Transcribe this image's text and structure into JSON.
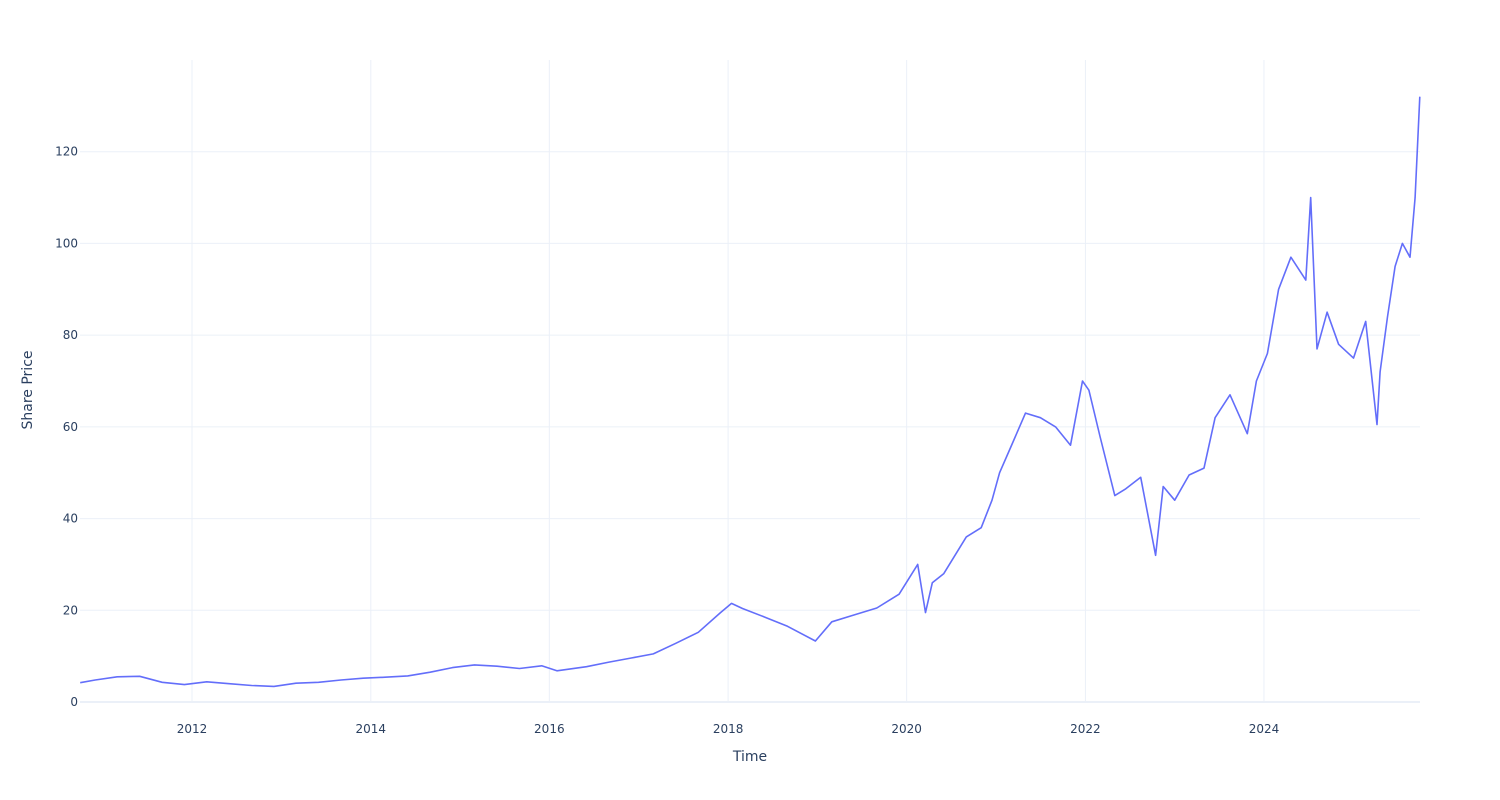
{
  "chart_data": {
    "type": "line",
    "title": "",
    "xlabel": "Time",
    "ylabel": "Share Price",
    "xlim": [
      "2010-09-30",
      "2025-09-30"
    ],
    "ylim": [
      0,
      140
    ],
    "x_ticks": [
      "2012",
      "2014",
      "2016",
      "2018",
      "2020",
      "2022",
      "2024"
    ],
    "y_ticks": [
      "0",
      "20",
      "40",
      "60",
      "80",
      "100",
      "120"
    ],
    "grid": true,
    "legend": "none",
    "series": [
      {
        "color": "#636efa",
        "x": [
          "2010-10-01",
          "2010-12-01",
          "2011-03-01",
          "2011-06-01",
          "2011-09-01",
          "2011-12-01",
          "2012-03-01",
          "2012-06-01",
          "2012-09-01",
          "2012-12-01",
          "2013-03-01",
          "2013-06-01",
          "2013-09-01",
          "2013-12-01",
          "2014-03-01",
          "2014-06-01",
          "2014-09-01",
          "2014-12-01",
          "2015-03-01",
          "2015-06-01",
          "2015-09-01",
          "2015-12-01",
          "2016-02-01",
          "2016-06-01",
          "2016-09-01",
          "2016-12-01",
          "2017-03-01",
          "2017-06-01",
          "2017-09-01",
          "2017-12-01",
          "2018-01-15",
          "2018-03-01",
          "2018-06-01",
          "2018-09-01",
          "2018-12-24",
          "2019-03-01",
          "2019-06-01",
          "2019-09-01",
          "2019-12-01",
          "2020-02-15",
          "2020-03-18",
          "2020-04-15",
          "2020-06-01",
          "2020-09-01",
          "2020-11-01",
          "2020-12-15",
          "2021-01-15",
          "2021-03-01",
          "2021-05-01",
          "2021-07-01",
          "2021-09-01",
          "2021-11-01",
          "2021-12-20",
          "2022-01-15",
          "2022-03-01",
          "2022-05-01",
          "2022-06-15",
          "2022-08-15",
          "2022-10-15",
          "2022-11-15",
          "2023-01-01",
          "2023-03-01",
          "2023-05-01",
          "2023-06-15",
          "2023-08-15",
          "2023-10-25",
          "2023-12-01",
          "2024-01-15",
          "2024-03-01",
          "2024-04-20",
          "2024-06-20",
          "2024-07-10",
          "2024-08-05",
          "2024-09-15",
          "2024-11-01",
          "2025-01-01",
          "2025-02-20",
          "2025-04-07",
          "2025-04-20",
          "2025-05-20",
          "2025-06-20",
          "2025-07-20",
          "2025-08-20",
          "2025-09-10",
          "2025-09-29"
        ],
        "y": [
          4.2,
          4.8,
          5.5,
          5.6,
          4.3,
          3.8,
          4.4,
          4.0,
          3.6,
          3.4,
          4.1,
          4.3,
          4.8,
          5.2,
          5.4,
          5.7,
          6.5,
          7.5,
          8.1,
          7.8,
          7.3,
          7.9,
          6.8,
          7.7,
          8.7,
          9.6,
          10.5,
          12.8,
          15.2,
          19.5,
          21.5,
          20.4,
          18.5,
          16.5,
          13.3,
          17.5,
          19.0,
          20.5,
          23.5,
          30.0,
          19.5,
          26.0,
          28.0,
          36.0,
          38.0,
          44.0,
          50.0,
          55.5,
          63.0,
          62.0,
          60.0,
          56.0,
          70.0,
          68.0,
          58.0,
          45.0,
          46.5,
          49.0,
          32.0,
          47.0,
          44.0,
          49.5,
          51.0,
          62.0,
          67.0,
          58.5,
          70.0,
          76.0,
          90.0,
          97.0,
          92.0,
          110.0,
          77.0,
          85.0,
          78.0,
          75.0,
          83.0,
          60.5,
          72.0,
          84.0,
          95.0,
          100.0,
          97.0,
          110.0,
          132.0
        ]
      }
    ]
  }
}
